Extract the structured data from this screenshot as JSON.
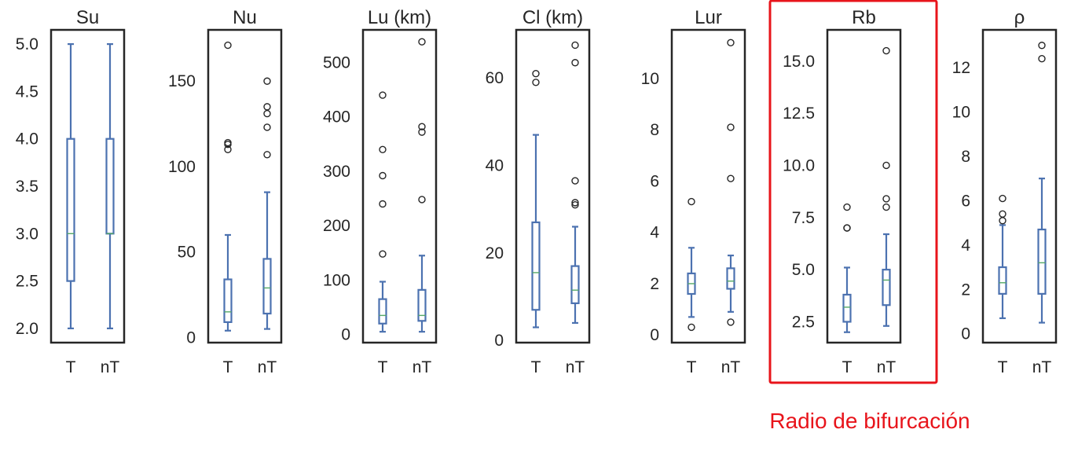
{
  "highlight": {
    "panel_index": 5,
    "color": "#e8141b"
  },
  "annotation": {
    "text": "Radio de bifurcación",
    "color": "#e8141b"
  },
  "colors": {
    "box": "#4c72b0",
    "median": "#55a868",
    "frame": "#262626"
  },
  "chart_data": [
    {
      "type": "box",
      "title": "Su",
      "categories": [
        "T",
        "nT"
      ],
      "ylim": [
        1.85,
        5.15
      ],
      "ticks": [
        {
          "v": 2.0,
          "label": "2.0"
        },
        {
          "v": 2.5,
          "label": "2.5"
        },
        {
          "v": 3.0,
          "label": "3.0"
        },
        {
          "v": 3.5,
          "label": "3.5"
        },
        {
          "v": 4.0,
          "label": "4.0"
        },
        {
          "v": 4.5,
          "label": "4.5"
        },
        {
          "v": 5.0,
          "label": "5.0"
        }
      ],
      "series": [
        {
          "category": "T",
          "whislo": 2.0,
          "q1": 2.5,
          "med": 3.0,
          "q3": 4.0,
          "whishi": 5.0,
          "fliers": []
        },
        {
          "category": "nT",
          "whislo": 2.0,
          "q1": 3.0,
          "med": 3.0,
          "q3": 4.0,
          "whishi": 5.0,
          "fliers": []
        }
      ]
    },
    {
      "type": "box",
      "title": "Nu",
      "categories": [
        "T",
        "nT"
      ],
      "ylim": [
        -3,
        180
      ],
      "ticks": [
        {
          "v": 0,
          "label": "0"
        },
        {
          "v": 50,
          "label": "50"
        },
        {
          "v": 100,
          "label": "100"
        },
        {
          "v": 150,
          "label": "150"
        }
      ],
      "series": [
        {
          "category": "T",
          "whislo": 4,
          "q1": 9,
          "med": 15,
          "q3": 34,
          "whishi": 60,
          "fliers": [
            110,
            113,
            114,
            171
          ]
        },
        {
          "category": "nT",
          "whislo": 5,
          "q1": 14,
          "med": 29,
          "q3": 46,
          "whishi": 85,
          "fliers": [
            107,
            123,
            131,
            135,
            150
          ]
        }
      ]
    },
    {
      "type": "box",
      "title": "Lu (km)",
      "categories": [
        "T",
        "nT"
      ],
      "ylim": [
        -15,
        560
      ],
      "ticks": [
        {
          "v": 0,
          "label": "0"
        },
        {
          "v": 100,
          "label": "100"
        },
        {
          "v": 200,
          "label": "200"
        },
        {
          "v": 300,
          "label": "300"
        },
        {
          "v": 400,
          "label": "400"
        },
        {
          "v": 500,
          "label": "500"
        }
      ],
      "series": [
        {
          "category": "T",
          "whislo": 5,
          "q1": 20,
          "med": 35,
          "q3": 65,
          "whishi": 97,
          "fliers": [
            148,
            240,
            292,
            340,
            440
          ]
        },
        {
          "category": "nT",
          "whislo": 5,
          "q1": 25,
          "med": 35,
          "q3": 82,
          "whishi": 145,
          "fliers": [
            248,
            372,
            382,
            538
          ]
        }
      ]
    },
    {
      "type": "box",
      "title": "Cl (km)",
      "categories": [
        "T",
        "nT"
      ],
      "ylim": [
        -0.5,
        71
      ],
      "ticks": [
        {
          "v": 0,
          "label": "0"
        },
        {
          "v": 20,
          "label": "20"
        },
        {
          "v": 40,
          "label": "40"
        },
        {
          "v": 60,
          "label": "60"
        }
      ],
      "series": [
        {
          "category": "T",
          "whislo": 3,
          "q1": 7,
          "med": 15.5,
          "q3": 27,
          "whishi": 47,
          "fliers": [
            59,
            61
          ]
        },
        {
          "category": "nT",
          "whislo": 4,
          "q1": 8.5,
          "med": 11.5,
          "q3": 17,
          "whishi": 26,
          "fliers": [
            31,
            31.5,
            36.5,
            63.5,
            67.5
          ]
        }
      ]
    },
    {
      "type": "box",
      "title": "Lur",
      "categories": [
        "T",
        "nT"
      ],
      "ylim": [
        -0.3,
        11.9
      ],
      "ticks": [
        {
          "v": 0,
          "label": "0"
        },
        {
          "v": 2,
          "label": "2"
        },
        {
          "v": 4,
          "label": "4"
        },
        {
          "v": 6,
          "label": "6"
        },
        {
          "v": 8,
          "label": "8"
        },
        {
          "v": 10,
          "label": "10"
        }
      ],
      "series": [
        {
          "category": "T",
          "whislo": 0.7,
          "q1": 1.6,
          "med": 2.0,
          "q3": 2.4,
          "whishi": 3.4,
          "fliers": [
            0.3,
            5.2
          ]
        },
        {
          "category": "nT",
          "whislo": 0.9,
          "q1": 1.8,
          "med": 2.1,
          "q3": 2.6,
          "whishi": 3.1,
          "fliers": [
            0.5,
            6.1,
            8.1,
            11.4
          ]
        }
      ]
    },
    {
      "type": "box",
      "title": "Rb",
      "categories": [
        "T",
        "nT"
      ],
      "ylim": [
        1.5,
        16.5
      ],
      "ticks": [
        {
          "v": 2.5,
          "label": "2.5"
        },
        {
          "v": 5.0,
          "label": "5.0"
        },
        {
          "v": 7.5,
          "label": "7.5"
        },
        {
          "v": 10.0,
          "label": "10.0"
        },
        {
          "v": 12.5,
          "label": "12.5"
        },
        {
          "v": 15.0,
          "label": "15.0"
        }
      ],
      "series": [
        {
          "category": "T",
          "whislo": 2.0,
          "q1": 2.5,
          "med": 3.2,
          "q3": 3.8,
          "whishi": 5.1,
          "fliers": [
            7.0,
            7.0,
            8.0
          ]
        },
        {
          "category": "nT",
          "whislo": 2.3,
          "q1": 3.3,
          "med": 4.5,
          "q3": 5.0,
          "whishi": 6.7,
          "fliers": [
            8.0,
            8.4,
            10.0,
            15.5
          ]
        }
      ]
    },
    {
      "type": "box",
      "title": "ρ",
      "categories": [
        "T",
        "nT"
      ],
      "ylim": [
        -0.4,
        13.7
      ],
      "ticks": [
        {
          "v": 0,
          "label": "0"
        },
        {
          "v": 2,
          "label": "2"
        },
        {
          "v": 4,
          "label": "4"
        },
        {
          "v": 6,
          "label": "6"
        },
        {
          "v": 8,
          "label": "8"
        },
        {
          "v": 10,
          "label": "10"
        },
        {
          "v": 12,
          "label": "12"
        }
      ],
      "series": [
        {
          "category": "T",
          "whislo": 0.7,
          "q1": 1.8,
          "med": 2.3,
          "q3": 3.0,
          "whishi": 4.9,
          "fliers": [
            5.1,
            5.4,
            6.1
          ]
        },
        {
          "category": "nT",
          "whislo": 0.5,
          "q1": 1.8,
          "med": 3.2,
          "q3": 4.7,
          "whishi": 7.0,
          "fliers": [
            12.4,
            13.0
          ]
        }
      ]
    }
  ]
}
